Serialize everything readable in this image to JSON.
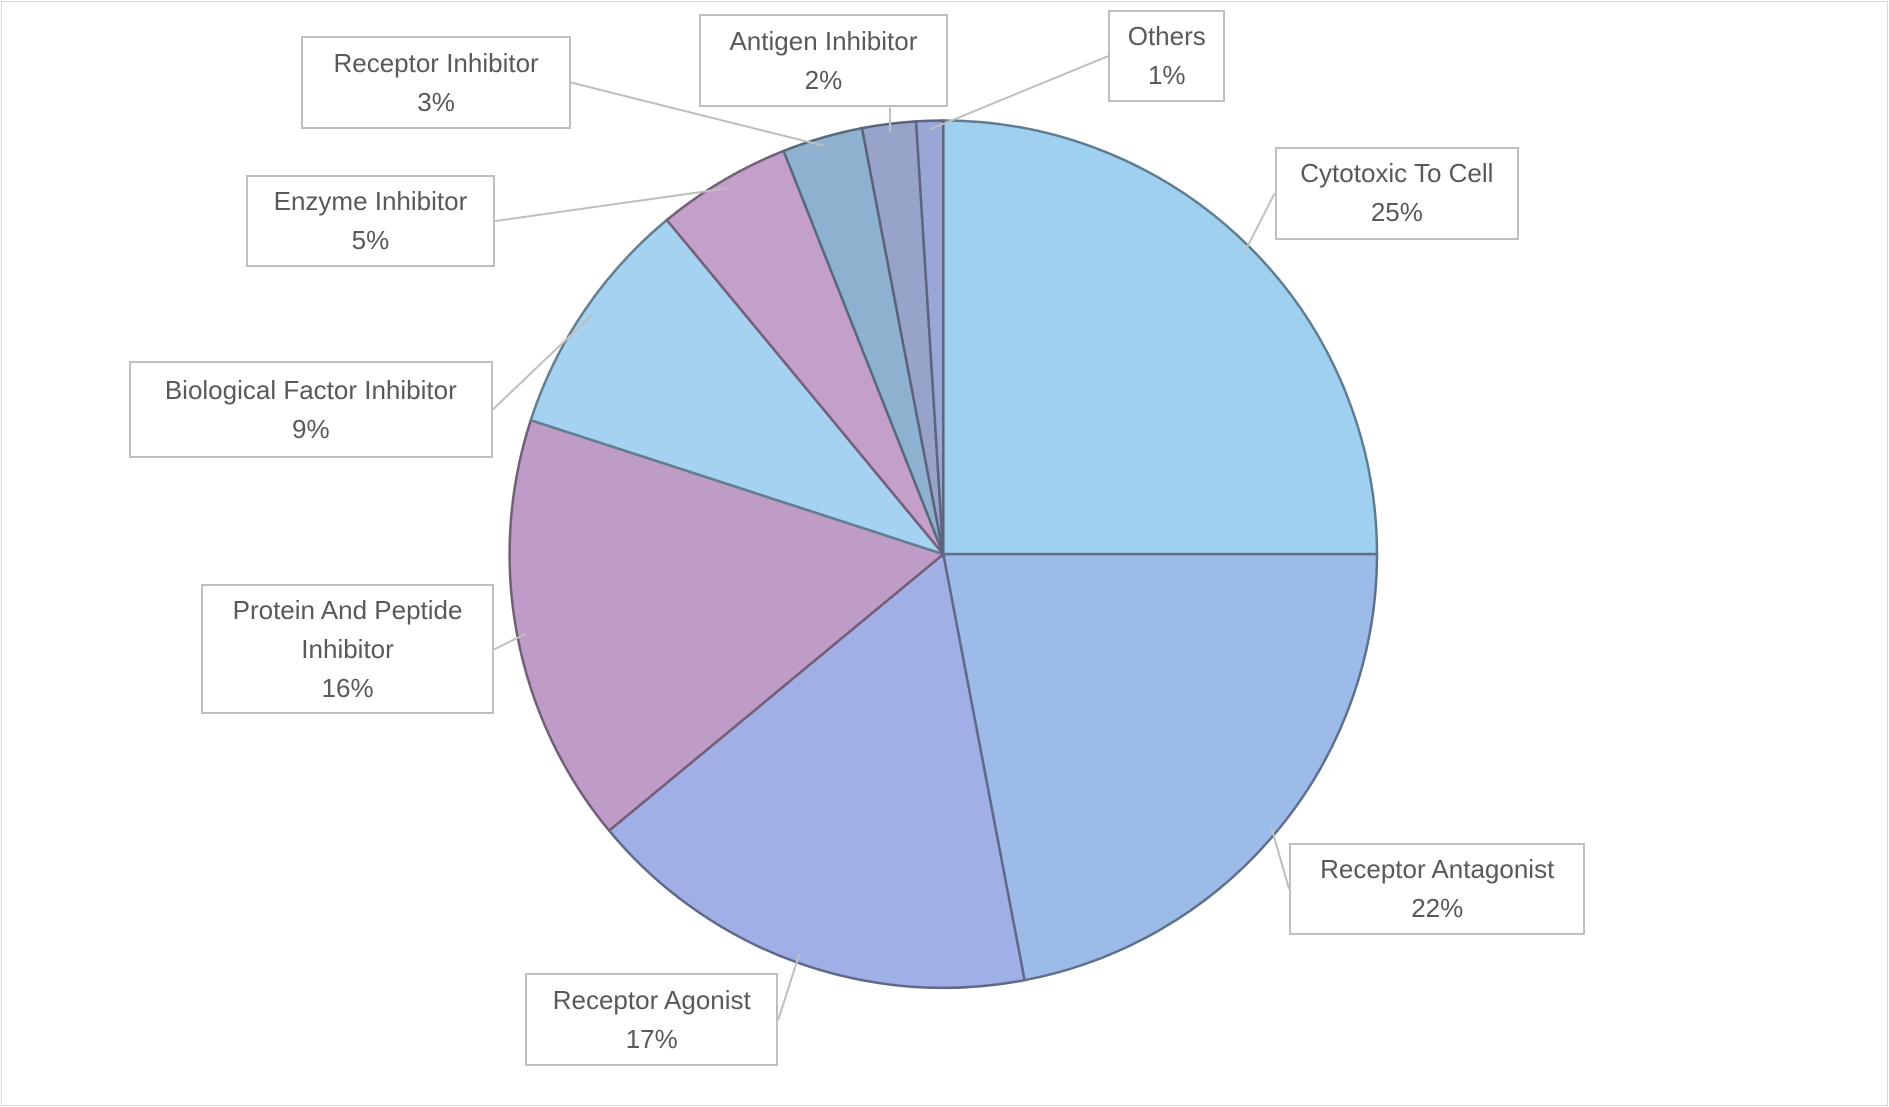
{
  "chart_data": {
    "type": "pie",
    "categories": [
      "Cytotoxic To Cell",
      "Receptor Antagonist",
      "Receptor Agonist",
      "Protein And Peptide Inhibitor",
      "Biological Factor Inhibitor",
      "Enzyme Inhibitor",
      "Receptor Inhibitor",
      "Antigen Inhibitor",
      "Others"
    ],
    "values": [
      25,
      22,
      17,
      16,
      9,
      5,
      3,
      2,
      1
    ],
    "value_labels": [
      "25%",
      "22%",
      "17%",
      "16%",
      "9%",
      "5%",
      "3%",
      "2%",
      "1%"
    ],
    "colors": [
      "#9fd0f0",
      "#9dbbe9",
      "#a0afe5",
      "#bf9cc8",
      "#a5d2f0",
      "#c39fca",
      "#8fb1d0",
      "#98a3c9",
      "#9aa6d6"
    ]
  }
}
